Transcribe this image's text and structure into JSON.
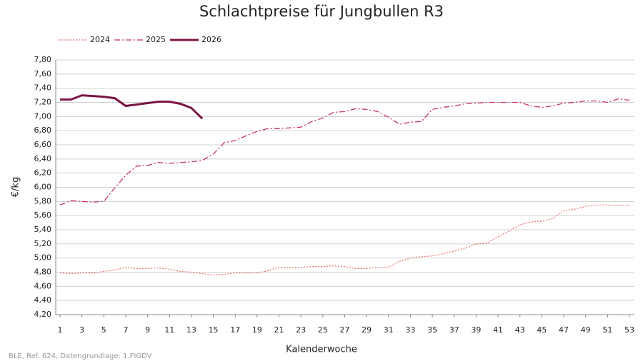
{
  "chart_data": {
    "type": "line",
    "title": "Schlachtpreise für Jungbullen R3",
    "ylabel": "€/kg",
    "xlabel": "Kalenderwoche",
    "note": "BLE, Ref. 624, Datengrundlage: 1.FIGDV",
    "x": [
      1,
      2,
      3,
      4,
      5,
      6,
      7,
      8,
      9,
      10,
      11,
      12,
      13,
      14,
      15,
      16,
      17,
      18,
      19,
      20,
      21,
      22,
      23,
      24,
      25,
      26,
      27,
      28,
      29,
      30,
      31,
      32,
      33,
      34,
      35,
      36,
      37,
      38,
      39,
      40,
      41,
      42,
      43,
      44,
      45,
      46,
      47,
      48,
      49,
      50,
      51,
      52,
      53
    ],
    "xlim": [
      1,
      53
    ],
    "xticks": [
      1,
      3,
      5,
      7,
      9,
      11,
      13,
      15,
      17,
      19,
      21,
      23,
      25,
      27,
      29,
      31,
      33,
      35,
      37,
      39,
      41,
      43,
      45,
      47,
      49,
      51,
      53
    ],
    "ylim": [
      4.2,
      7.8
    ],
    "yticks": [
      {
        "value": 4.2,
        "label": "4,20"
      },
      {
        "value": 4.4,
        "label": "4,40"
      },
      {
        "value": 4.6,
        "label": "4,60"
      },
      {
        "value": 4.8,
        "label": "4,80"
      },
      {
        "value": 5.0,
        "label": "5,00"
      },
      {
        "value": 5.2,
        "label": "5,20"
      },
      {
        "value": 5.4,
        "label": "5,40"
      },
      {
        "value": 5.6,
        "label": "5,60"
      },
      {
        "value": 5.8,
        "label": "5,80"
      },
      {
        "value": 6.0,
        "label": "6,00"
      },
      {
        "value": 6.2,
        "label": "6,20"
      },
      {
        "value": 6.4,
        "label": "6,40"
      },
      {
        "value": 6.6,
        "label": "6,60"
      },
      {
        "value": 6.8,
        "label": "6,80"
      },
      {
        "value": 7.0,
        "label": "7,00"
      },
      {
        "value": 7.2,
        "label": "7,20"
      },
      {
        "value": 7.4,
        "label": "7,40"
      },
      {
        "value": 7.6,
        "label": "7,60"
      },
      {
        "value": 7.8,
        "label": "7,80"
      }
    ],
    "grid": true,
    "legend": "top-left",
    "series": [
      {
        "name": "2024",
        "color": "#e8706a",
        "style": "dotted",
        "values": [
          4.79,
          4.78,
          4.79,
          4.79,
          4.81,
          4.83,
          4.87,
          4.85,
          4.85,
          4.86,
          4.84,
          4.81,
          4.8,
          4.78,
          4.76,
          4.77,
          4.79,
          4.79,
          4.79,
          4.82,
          4.87,
          4.87,
          4.87,
          4.88,
          4.88,
          4.89,
          4.88,
          4.85,
          4.85,
          4.87,
          4.87,
          4.95,
          5.0,
          5.02,
          5.03,
          5.06,
          5.1,
          5.14,
          5.2,
          5.21,
          5.3,
          5.38,
          5.47,
          5.51,
          5.52,
          5.56,
          5.67,
          5.69,
          5.73,
          5.75,
          5.75,
          5.74,
          5.75
        ]
      },
      {
        "name": "2025",
        "color": "#c8336f",
        "style": "dashdot",
        "values": [
          5.75,
          5.81,
          5.8,
          5.79,
          5.8,
          5.99,
          6.17,
          6.3,
          6.31,
          6.35,
          6.34,
          6.35,
          6.36,
          6.38,
          6.47,
          6.63,
          6.66,
          6.73,
          6.79,
          6.83,
          6.83,
          6.84,
          6.85,
          6.93,
          6.98,
          7.06,
          7.07,
          7.11,
          7.1,
          7.07,
          6.99,
          6.89,
          6.92,
          6.93,
          7.1,
          7.13,
          7.15,
          7.18,
          7.19,
          7.2,
          7.2,
          7.2,
          7.2,
          7.15,
          7.13,
          7.15,
          7.19,
          7.2,
          7.22,
          7.22,
          7.2,
          7.25,
          7.23
        ]
      },
      {
        "name": "2026",
        "color": "#7b1545",
        "style": "solid",
        "values": [
          7.24,
          7.24,
          7.3,
          7.29,
          7.28,
          7.26,
          7.15,
          7.17,
          7.19,
          7.21,
          7.21,
          7.18,
          7.12,
          6.97,
          null,
          null,
          null,
          null,
          null,
          null,
          null,
          null,
          null,
          null,
          null,
          null,
          null,
          null,
          null,
          null,
          null,
          null,
          null,
          null,
          null,
          null,
          null,
          null,
          null,
          null,
          null,
          null,
          null,
          null,
          null,
          null,
          null,
          null,
          null,
          null,
          null,
          null,
          null
        ]
      }
    ]
  }
}
